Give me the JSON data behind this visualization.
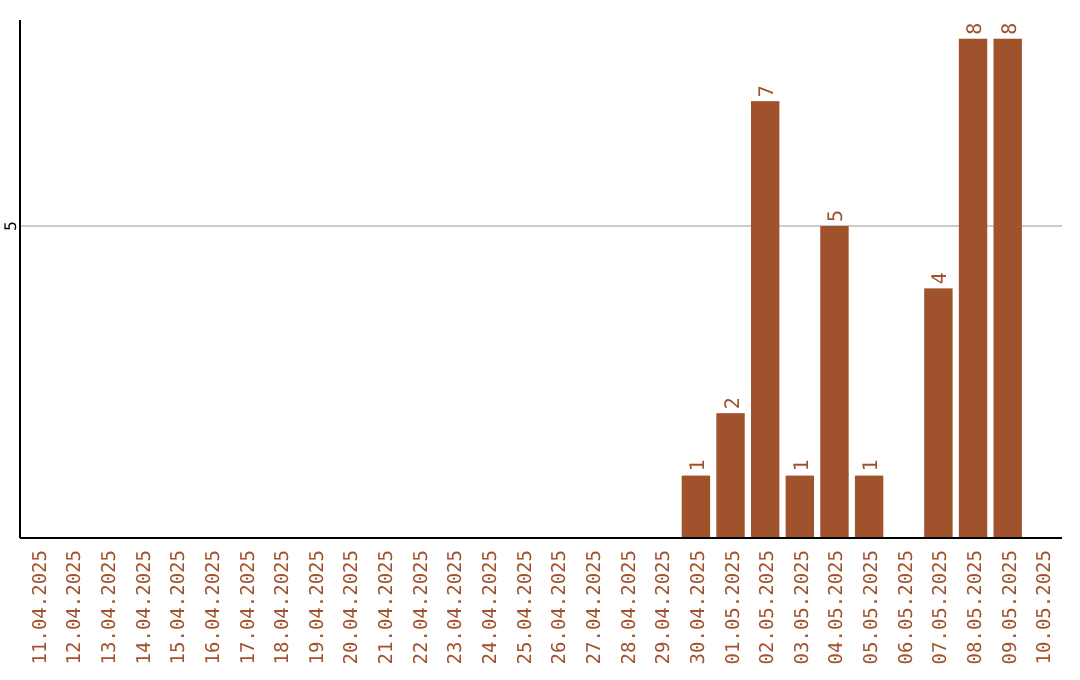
{
  "chart_data": {
    "type": "bar",
    "categories": [
      "11.04.2025",
      "12.04.2025",
      "13.04.2025",
      "14.04.2025",
      "15.04.2025",
      "16.04.2025",
      "17.04.2025",
      "18.04.2025",
      "19.04.2025",
      "20.04.2025",
      "21.04.2025",
      "22.04.2025",
      "23.04.2025",
      "24.04.2025",
      "25.04.2025",
      "26.04.2025",
      "27.04.2025",
      "28.04.2025",
      "29.04.2025",
      "30.04.2025",
      "01.05.2025",
      "02.05.2025",
      "03.05.2025",
      "04.05.2025",
      "05.05.2025",
      "06.05.2025",
      "07.05.2025",
      "08.05.2025",
      "09.05.2025",
      "10.05.2025"
    ],
    "values": [
      null,
      null,
      null,
      null,
      null,
      null,
      null,
      null,
      null,
      null,
      null,
      null,
      null,
      null,
      null,
      null,
      null,
      null,
      null,
      1,
      2,
      7,
      1,
      5,
      1,
      null,
      4,
      8,
      8,
      null
    ],
    "color": "#a0522d",
    "ylim": [
      0,
      8.3
    ],
    "yticks": [
      5
    ],
    "grid": "y",
    "data_labels": true
  }
}
